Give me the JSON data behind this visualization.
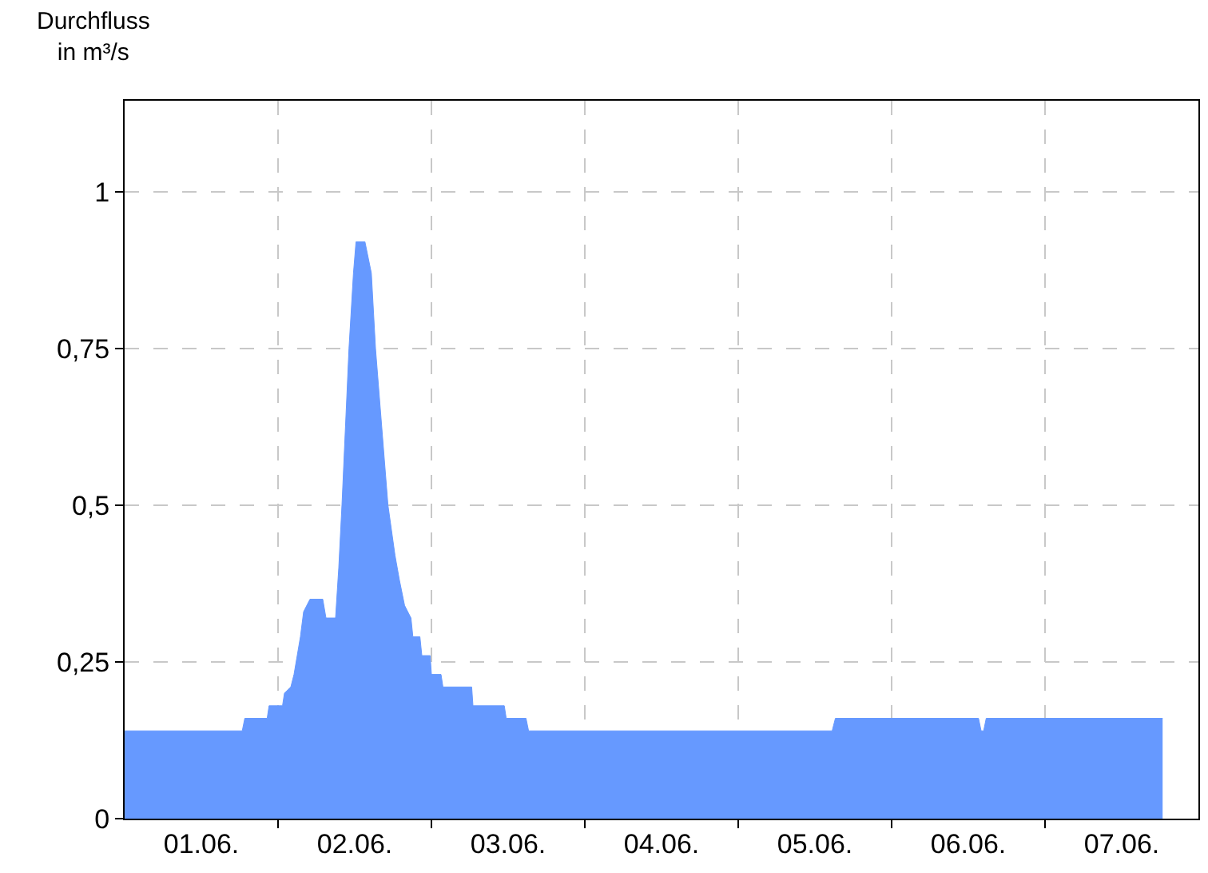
{
  "chart_data": {
    "type": "area",
    "ylabel": "Durchfluss\nin m³/s",
    "x": [
      "--06-01T00:00",
      "--06-01T18:24",
      "--06-01T18:48",
      "--06-01T22:18",
      "--06-01T22:36",
      "--06-02T00:42",
      "--06-02T01:00",
      "--06-02T02:00",
      "--06-02T02:30",
      "--06-02T03:00",
      "--06-02T03:30",
      "--06-02T04:00",
      "--06-02T05:00",
      "--06-02T07:00",
      "--06-02T07:30",
      "--06-02T09:00",
      "--06-02T09:30",
      "--06-02T10:00",
      "--06-02T11:06",
      "--06-02T11:48",
      "--06-02T12:12",
      "--06-02T13:36",
      "--06-02T14:36",
      "--06-02T15:15",
      "--06-02T17:12",
      "--06-02T18:18",
      "--06-02T19:00",
      "--06-02T19:48",
      "--06-02T20:48",
      "--06-02T21:06",
      "--06-02T22:12",
      "--06-02T22:30",
      "--06-02T23:48",
      "--06-03T00:00",
      "--06-03T01:30",
      "--06-03T01:48",
      "--06-03T06:18",
      "--06-03T06:30",
      "--06-03T11:24",
      "--06-03T11:42",
      "--06-03T14:48",
      "--06-03T15:12",
      "--06-05T14:42",
      "--06-05T15:12",
      "--06-06T13:36",
      "--06-06T14:00",
      "--06-06T14:24",
      "--06-06T14:48",
      "--06-07T18:24"
    ],
    "series": [
      {
        "color": "#6699ff",
        "values": [
          0.14,
          0.14,
          0.16,
          0.16,
          0.18,
          0.18,
          0.2,
          0.21,
          0.23,
          0.26,
          0.29,
          0.33,
          0.35,
          0.35,
          0.32,
          0.32,
          0.4,
          0.5,
          0.75,
          0.87,
          0.92,
          0.92,
          0.87,
          0.75,
          0.5,
          0.42,
          0.38,
          0.34,
          0.32,
          0.29,
          0.29,
          0.26,
          0.26,
          0.23,
          0.23,
          0.21,
          0.21,
          0.18,
          0.18,
          0.16,
          0.16,
          0.14,
          0.14,
          0.16,
          0.16,
          0.14,
          0.14,
          0.16,
          0.16
        ]
      }
    ],
    "xlim": [
      "--06-01",
      "--06-08"
    ],
    "xticks": [
      {
        "value": "--06-01T12:00",
        "label": "01.06."
      },
      {
        "value": "--06-02",
        "label": null
      },
      {
        "value": "--06-02T12:00",
        "label": "02.06."
      },
      {
        "value": "--06-03",
        "label": null
      },
      {
        "value": "--06-03T12:00",
        "label": "03.06."
      },
      {
        "value": "--06-04",
        "label": null
      },
      {
        "value": "--06-04T12:00",
        "label": "04.06."
      },
      {
        "value": "--06-05",
        "label": null
      },
      {
        "value": "--06-05T12:00",
        "label": "05.06."
      },
      {
        "value": "--06-06",
        "label": null
      },
      {
        "value": "--06-06T12:00",
        "label": "06.06."
      },
      {
        "value": "--06-07",
        "label": null
      },
      {
        "value": "--06-07T12:00",
        "label": "07.06."
      }
    ],
    "ylim": [
      0,
      1.145
    ],
    "yticks": [
      {
        "value": 0,
        "label": "0"
      },
      {
        "value": 0.25,
        "label": "0,25"
      },
      {
        "value": 0.5,
        "label": "0,5"
      },
      {
        "value": 0.75,
        "label": "0,75"
      },
      {
        "value": 1,
        "label": "1"
      }
    ],
    "grid": true
  }
}
